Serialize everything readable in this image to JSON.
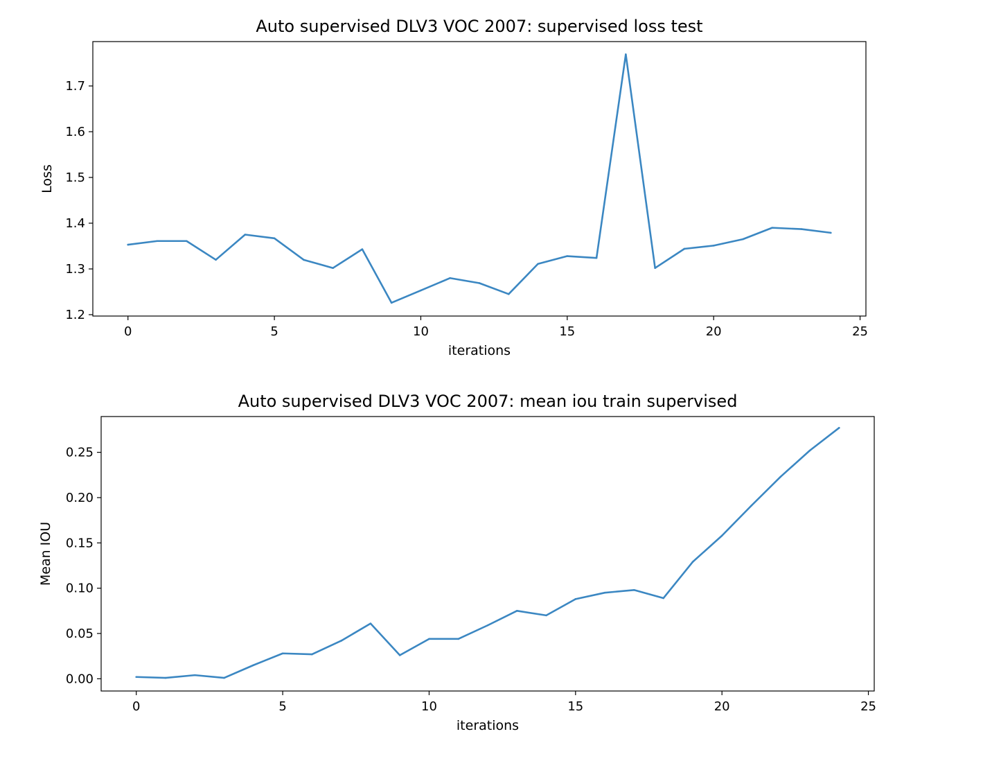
{
  "chart_data": [
    {
      "type": "line",
      "title": "Auto supervised DLV3 VOC 2007: supervised loss test",
      "xlabel": "iterations",
      "ylabel": "Loss",
      "xlim": [
        -1.2,
        25.2
      ],
      "ylim": [
        1.197,
        1.797
      ],
      "xticks": [
        0,
        5,
        10,
        15,
        20,
        25
      ],
      "xtick_labels": [
        "0",
        "5",
        "10",
        "15",
        "20",
        "25"
      ],
      "yticks": [
        1.2,
        1.3,
        1.4,
        1.5,
        1.6,
        1.7
      ],
      "ytick_labels": [
        "1.2",
        "1.3",
        "1.4",
        "1.5",
        "1.6",
        "1.7"
      ],
      "grid": false,
      "line_color": "#3b87c2",
      "series": [
        {
          "x": [
            0,
            1,
            2,
            3,
            4,
            5,
            6,
            7,
            8,
            9,
            10,
            11,
            12,
            13,
            14,
            15,
            16,
            17,
            18,
            19,
            20,
            21,
            22,
            23,
            24
          ],
          "values": [
            1.353,
            1.361,
            1.361,
            1.32,
            1.375,
            1.367,
            1.32,
            1.302,
            1.343,
            1.226,
            1.253,
            1.28,
            1.269,
            1.245,
            1.311,
            1.328,
            1.324,
            1.769,
            1.302,
            1.344,
            1.351,
            1.365,
            1.39,
            1.387,
            1.379
          ]
        }
      ]
    },
    {
      "type": "line",
      "title": "Auto supervised DLV3 VOC 2007: mean iou train supervised",
      "xlabel": "iterations",
      "ylabel": "Mean IOU",
      "xlim": [
        -1.2,
        25.2
      ],
      "ylim": [
        -0.0135,
        0.2895
      ],
      "xticks": [
        0,
        5,
        10,
        15,
        20,
        25
      ],
      "xtick_labels": [
        "0",
        "5",
        "10",
        "15",
        "20",
        "25"
      ],
      "yticks": [
        0.0,
        0.05,
        0.1,
        0.15,
        0.2,
        0.25
      ],
      "ytick_labels": [
        "0.00",
        "0.05",
        "0.10",
        "0.15",
        "0.20",
        "0.25"
      ],
      "grid": false,
      "line_color": "#3b87c2",
      "series": [
        {
          "x": [
            0,
            1,
            2,
            3,
            4,
            5,
            6,
            7,
            8,
            9,
            10,
            11,
            12,
            13,
            14,
            15,
            16,
            17,
            18,
            19,
            20,
            21,
            22,
            23,
            24
          ],
          "values": [
            0.002,
            0.001,
            0.004,
            0.001,
            0.015,
            0.028,
            0.027,
            0.042,
            0.061,
            0.026,
            0.044,
            0.044,
            0.059,
            0.075,
            0.07,
            0.088,
            0.095,
            0.098,
            0.089,
            0.129,
            0.158,
            0.191,
            0.223,
            0.252,
            0.277
          ]
        }
      ]
    }
  ]
}
